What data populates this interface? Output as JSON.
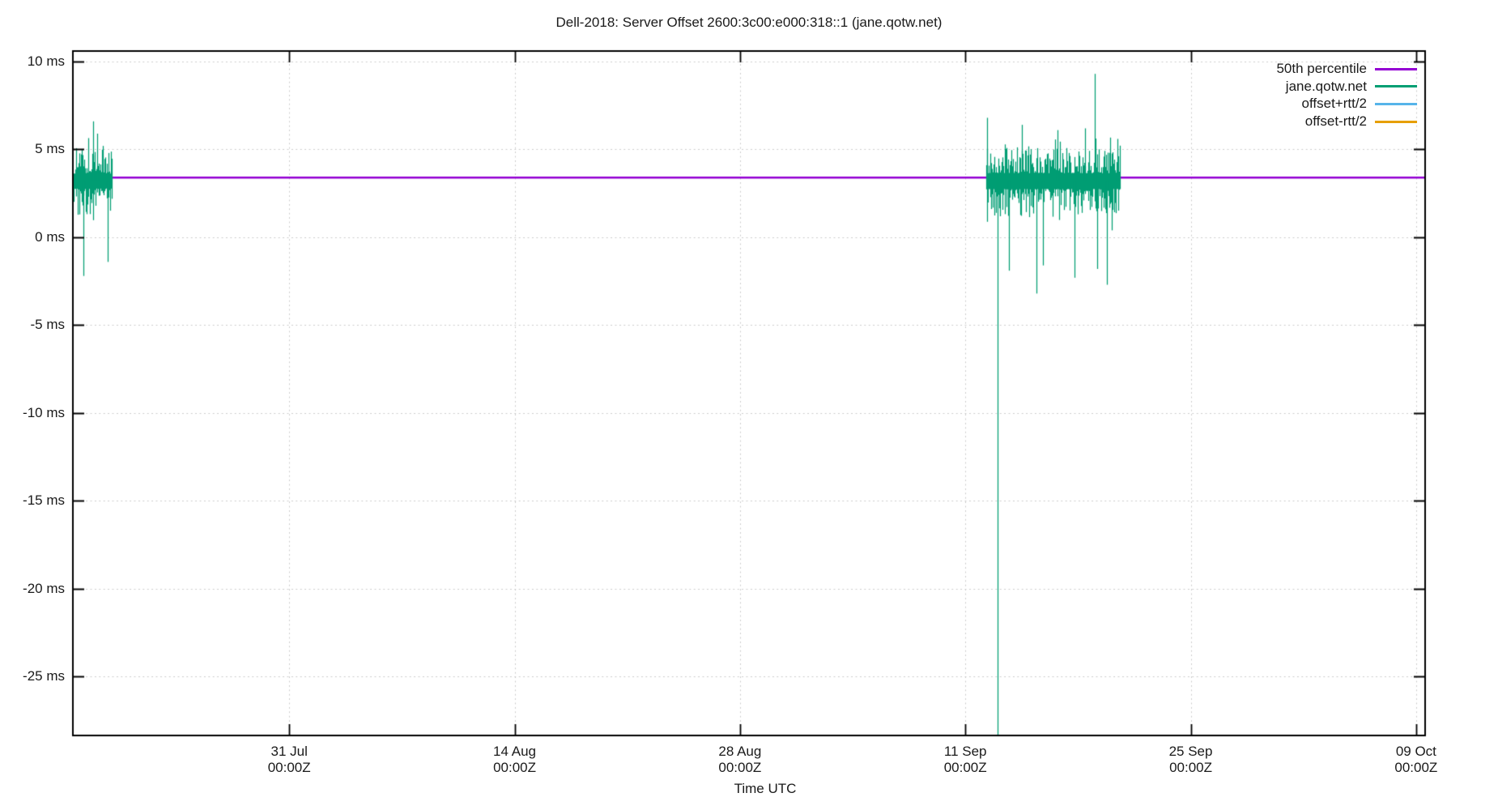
{
  "chart": {
    "title": "Dell-2018: Server Offset 2600:3c00:e000:318::1 (jane.qotw.net)",
    "xlabel": "Time UTC"
  },
  "chart_data": {
    "type": "line",
    "title": "Dell-2018: Server Offset 2600:3c00:e000:318::1 (jane.qotw.net)",
    "xlabel": "Time UTC",
    "ylabel": "",
    "grid": true,
    "legend_position": "top-right",
    "x_span_days": 84,
    "ylim_ms": [
      -28.35,
      10.6
    ],
    "y_ticks": [
      {
        "label": "10 ms",
        "ms": 10
      },
      {
        "label": "5 ms",
        "ms": 5
      },
      {
        "label": "0 ms",
        "ms": 0
      },
      {
        "label": "-5 ms",
        "ms": -5
      },
      {
        "label": "-10 ms",
        "ms": -10
      },
      {
        "label": "-15 ms",
        "ms": -15
      },
      {
        "label": "-20 ms",
        "ms": -20
      },
      {
        "label": "-25 ms",
        "ms": -25
      }
    ],
    "x_ticks": [
      {
        "date": "31 Jul",
        "time": "00:00Z",
        "day": 13.44
      },
      {
        "date": "14 Aug",
        "time": "00:00Z",
        "day": 27.44
      },
      {
        "date": "28 Aug",
        "time": "00:00Z",
        "day": 41.44
      },
      {
        "date": "11 Sep",
        "time": "00:00Z",
        "day": 55.44
      },
      {
        "date": "25 Sep",
        "time": "00:00Z",
        "day": 69.44
      },
      {
        "date": "09 Oct",
        "time": "00:00Z",
        "day": 83.44
      }
    ],
    "legend": [
      {
        "label": "50th percentile",
        "color": "#9400d3"
      },
      {
        "label": "jane.qotw.net",
        "color": "#009e73"
      },
      {
        "label": "offset+rtt/2",
        "color": "#56b4e9"
      },
      {
        "label": "offset-rtt/2",
        "color": "#e69f00"
      }
    ],
    "series": [
      {
        "name": "50th percentile",
        "style": "hline",
        "color": "#9400d3",
        "value_ms": 3.4
      },
      {
        "name": "jane.qotw.net",
        "style": "noisy_offset",
        "color": "#009e73",
        "clusters": [
          {
            "day_start": 0.05,
            "day_end": 2.41,
            "mean_ms": 3.2,
            "jitter_ms": 1.4,
            "spikes": [
              {
                "day": 0.65,
                "ms": -2.2
              },
              {
                "day": 1.26,
                "ms": 6.6
              },
              {
                "day": 1.51,
                "ms": 5.9
              },
              {
                "day": 2.16,
                "ms": -1.4
              }
            ]
          },
          {
            "day_start": 56.74,
            "day_end": 65.04,
            "mean_ms": 3.2,
            "jitter_ms": 1.5,
            "spikes": [
              {
                "day": 56.79,
                "ms": 6.8
              },
              {
                "day": 57.44,
                "ms": -28.4
              },
              {
                "day": 58.15,
                "ms": -1.9
              },
              {
                "day": 58.95,
                "ms": 6.4
              },
              {
                "day": 59.86,
                "ms": -3.2
              },
              {
                "day": 60.26,
                "ms": -1.6
              },
              {
                "day": 61.17,
                "ms": 6.1
              },
              {
                "day": 62.22,
                "ms": -2.3
              },
              {
                "day": 62.88,
                "ms": 6.2
              },
              {
                "day": 63.48,
                "ms": 9.3
              },
              {
                "day": 63.63,
                "ms": -1.8
              },
              {
                "day": 64.23,
                "ms": -2.7
              },
              {
                "day": 64.89,
                "ms": 5.6
              }
            ]
          }
        ]
      },
      {
        "name": "offset+rtt/2",
        "style": "hidden_overlap",
        "color": "#56b4e9"
      },
      {
        "name": "offset-rtt/2",
        "style": "hidden_overlap",
        "color": "#e69f00"
      }
    ],
    "style_colors": {
      "grid": "#c8c8c8",
      "border": "#000000",
      "text": "#1a1a1a"
    }
  }
}
